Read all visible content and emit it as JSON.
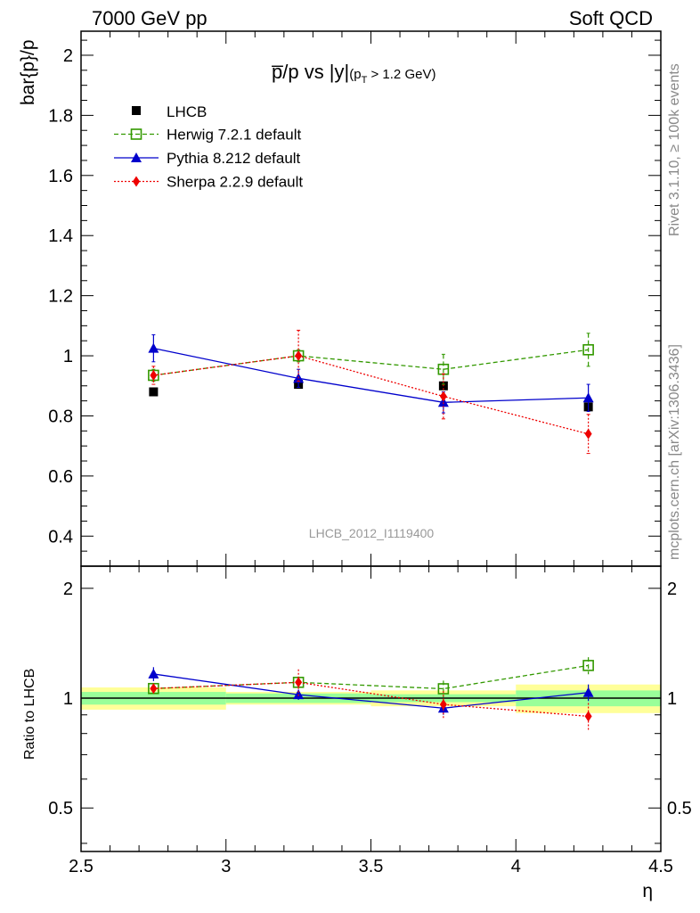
{
  "header": {
    "left": "7000 GeV pp",
    "right": "Soft QCD"
  },
  "side_labels": {
    "rivet": "Rivet 3.1.10, ≥ 100k events",
    "mcplots": "mcplots.cern.ch [arXiv:1306.3436]"
  },
  "watermark": "LHCB_2012_I1119400",
  "main_title": {
    "text": "p̅/p vs |y|",
    "cut": "(p",
    "cut_sub": "T",
    "cut_rest": " > 1.2 GeV)"
  },
  "chart_data": {
    "type": "scatter",
    "xlabel": "η",
    "ylabel": "bar{p}/p",
    "ratio_ylabel": "Ratio to LHCB",
    "xlim": [
      2.5,
      4.5
    ],
    "ylim": [
      0.3,
      2.08
    ],
    "ratio_ylim": [
      0.38,
      2.3
    ],
    "x_ticks": [
      2.5,
      3,
      3.5,
      4,
      4.5
    ],
    "x_tick_labels": [
      "2.5",
      "3",
      "3.5",
      "4",
      "4.5"
    ],
    "y_ticks": [
      0.4,
      0.6,
      0.8,
      1,
      1.2,
      1.4,
      1.6,
      1.8,
      2
    ],
    "y_tick_labels": [
      "0.4",
      "0.6",
      "0.8",
      "1",
      "1.2",
      "1.4",
      "1.6",
      "1.8",
      "2"
    ],
    "ratio_ticks": [
      0.5,
      1,
      2
    ],
    "ratio_tick_labels": [
      "0.5",
      "1",
      "2"
    ],
    "bins": [
      [
        2.5,
        3.0
      ],
      [
        3.0,
        3.5
      ],
      [
        3.5,
        4.0
      ],
      [
        4.0,
        4.5
      ]
    ],
    "data": {
      "name": "LHCB",
      "x": [
        2.75,
        3.25,
        3.75,
        4.25
      ],
      "y": [
        0.88,
        0.905,
        0.9,
        0.83
      ],
      "stat_rel": [
        0.04,
        0.03,
        0.025,
        0.05
      ],
      "total_rel": [
        0.07,
        0.04,
        0.05,
        0.09
      ]
    },
    "series": [
      {
        "name": "Herwig 7.2.1 default",
        "color": "#339900",
        "style": "dashed",
        "marker": "open-square",
        "x": [
          2.75,
          3.25,
          3.75,
          4.25
        ],
        "y": [
          0.935,
          1.0,
          0.955,
          1.02
        ],
        "yerr": [
          0.02,
          0.02,
          0.05,
          0.055
        ]
      },
      {
        "name": "Pythia 8.212 default",
        "color": "#0000cc",
        "style": "solid",
        "marker": "triangle",
        "x": [
          2.75,
          3.25,
          3.75,
          4.25
        ],
        "y": [
          1.025,
          0.925,
          0.845,
          0.86
        ],
        "yerr": [
          0.045,
          0.03,
          0.035,
          0.045
        ]
      },
      {
        "name": "Sherpa 2.2.9 default",
        "color": "#ee0000",
        "style": "dotted",
        "marker": "diamond",
        "x": [
          2.75,
          3.25,
          3.75,
          4.25
        ],
        "y": [
          0.935,
          1.0,
          0.865,
          0.74
        ],
        "yerr": [
          0.03,
          0.085,
          0.075,
          0.065
        ]
      }
    ],
    "legend_position": "top-left"
  }
}
